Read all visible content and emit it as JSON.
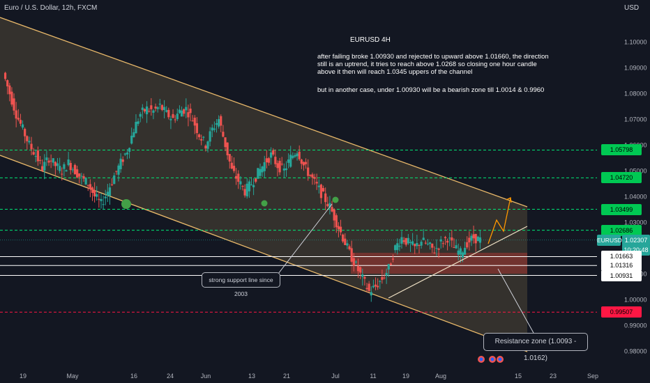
{
  "header": {
    "title": "Euro / U.S. Dollar, 12h, FXCM",
    "currency": "USD"
  },
  "annotation": {
    "title": "EURUSD 4H",
    "lines": [
      "after failing broke 1.00930 and rejected to upward above 1.01660, the direction",
      "still is an uptrend, it tries to reach above 1.0268 so closing one hour candle",
      "above it then will reach 1.0345 uppers of the channel",
      "",
      "but in another case, under 1.00930  will be a bearish zone till 1.0014 & 0.9960"
    ],
    "support_label": "strong support line since 2003",
    "resistance_label": "Resistance zone (1.0093  -  1.0162)"
  },
  "price_labels": [
    {
      "text": "1.05798",
      "value": 1.05798,
      "bg": "#00c853",
      "fg": "#000000"
    },
    {
      "text": "1.04720",
      "value": 1.0472,
      "bg": "#00c853",
      "fg": "#000000"
    },
    {
      "text": "1.03499",
      "value": 1.03499,
      "bg": "#00c853",
      "fg": "#000000"
    },
    {
      "text": "1.02686",
      "value": 1.02686,
      "bg": "#00c853",
      "fg": "#000000"
    },
    {
      "text": "EURUSD",
      "value": 1.02307,
      "bg": "#26a69a",
      "fg": "#ffffff",
      "kind": "symbol"
    },
    {
      "text": "1.02307",
      "value": 1.02307,
      "bg": "#26a69a",
      "fg": "#ffffff"
    },
    {
      "text": "10:20:48",
      "value": 1.0208,
      "bg": "#26a69a",
      "fg": "#ffffff"
    },
    {
      "text": "1.01663",
      "value": 1.01663,
      "bg": "#ffffff",
      "fg": "#000000"
    },
    {
      "text": "1.01316",
      "value": 1.01316,
      "bg": "#ffffff",
      "fg": "#000000"
    },
    {
      "text": "1.00931",
      "value": 1.00931,
      "bg": "#ffffff",
      "fg": "#000000"
    },
    {
      "text": "0.99507",
      "value": 0.99507,
      "bg": "#ff1744",
      "fg": "#000000"
    }
  ],
  "chart_data": {
    "type": "candlestick",
    "title": "Euro / U.S. Dollar, 12h, FXCM",
    "ylabel": "USD",
    "ylim": [
      0.975,
      1.107
    ],
    "y_ticks": [
      "1.10000",
      "1.09000",
      "1.08000",
      "1.07000",
      "1.06000",
      "1.05000",
      "1.04000",
      "1.03000",
      "1.02000",
      "1.01000",
      "1.00000",
      "0.99000",
      "0.98000"
    ],
    "x_ticks": [
      "19",
      "May",
      "16",
      "24",
      "Jun",
      "13",
      "21",
      "Jul",
      "11",
      "19",
      "Aug",
      "15",
      "23",
      "Sep"
    ],
    "levels": [
      {
        "value": 1.05798,
        "style": "dashed",
        "color": "#00e676"
      },
      {
        "value": 1.0472,
        "style": "dashed",
        "color": "#00e676"
      },
      {
        "value": 1.03499,
        "style": "dashed",
        "color": "#00e676"
      },
      {
        "value": 1.02686,
        "style": "dashed",
        "color": "#00e676"
      },
      {
        "value": 1.01663,
        "style": "solid",
        "color": "#ffffff"
      },
      {
        "value": 1.01316,
        "style": "solid",
        "color": "#ffffff"
      },
      {
        "value": 1.00931,
        "style": "solid",
        "color": "#ffffff"
      },
      {
        "value": 0.99507,
        "style": "dashed",
        "color": "#ff1744"
      }
    ],
    "close_path": [
      1.088,
      1.08,
      1.072,
      1.066,
      1.06,
      1.056,
      1.051,
      1.055,
      1.052,
      1.05,
      1.053,
      1.05,
      1.047,
      1.045,
      1.04,
      1.037,
      1.042,
      1.048,
      1.053,
      1.058,
      1.066,
      1.072,
      1.074,
      1.073,
      1.075,
      1.072,
      1.07,
      1.073,
      1.074,
      1.07,
      1.064,
      1.06,
      1.066,
      1.07,
      1.06,
      1.05,
      1.046,
      1.042,
      1.045,
      1.049,
      1.053,
      1.056,
      1.052,
      1.05,
      1.055,
      1.058,
      1.052,
      1.048,
      1.044,
      1.04,
      1.036,
      1.03,
      1.024,
      1.018,
      1.013,
      1.008,
      1.003,
      1.005,
      1.008,
      1.012,
      1.02,
      1.024,
      1.022,
      1.02,
      1.023,
      1.021,
      1.019,
      1.022,
      1.024,
      1.02,
      1.018,
      1.022,
      1.024,
      1.023
    ],
    "colors": {
      "up": "#26a69a",
      "down": "#ef5350",
      "channel": "#e8b86a",
      "support_marker": "#43a047",
      "projection": "#ff9800"
    }
  }
}
